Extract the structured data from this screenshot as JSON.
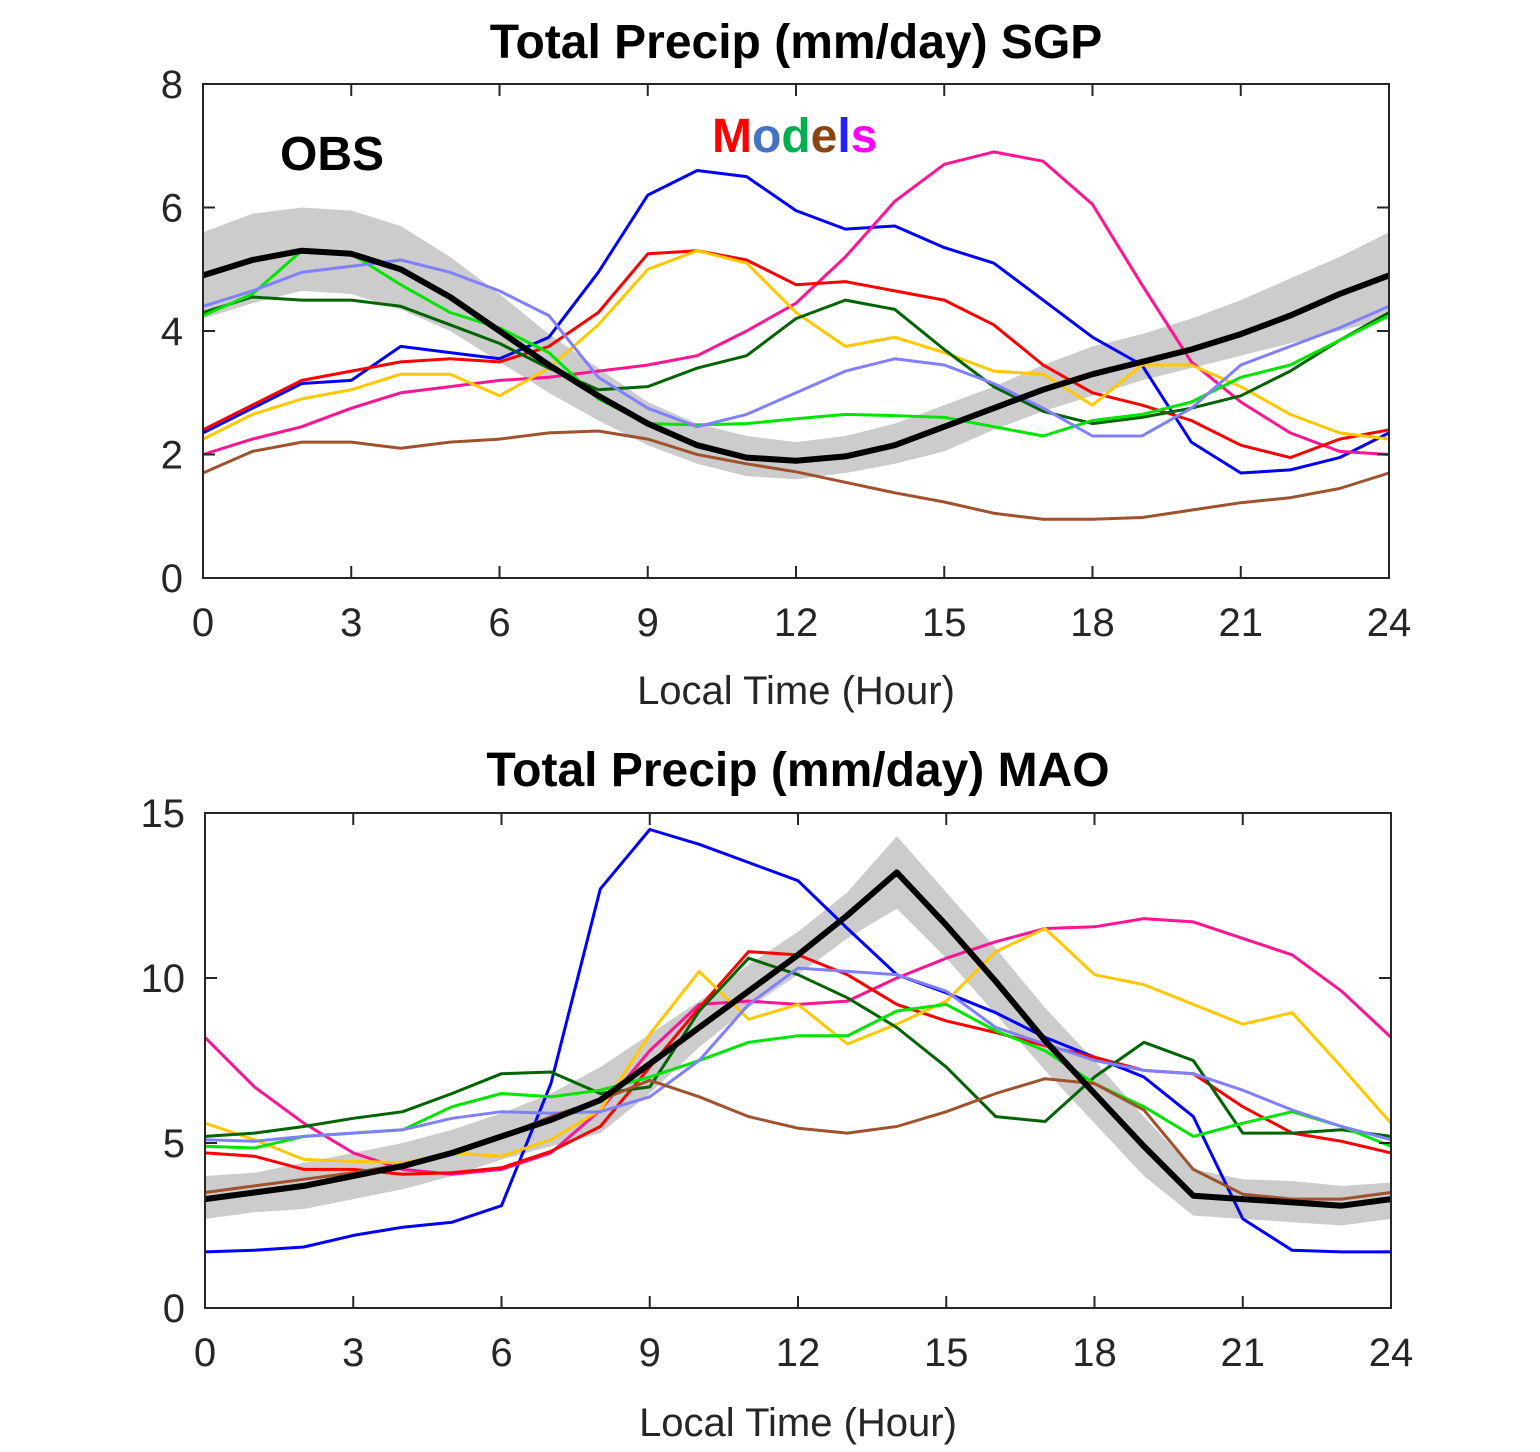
{
  "colors": {
    "obs": "#000000",
    "band": "#cccccc",
    "models": [
      "#0000ff",
      "#ff1493",
      "#ff0000",
      "#ffc800",
      "#006400",
      "#00e600",
      "#8080ff",
      "#a0522d"
    ]
  },
  "chart_data": [
    {
      "type": "line",
      "title": "Total Precip (mm/day) SGP",
      "xlabel": "Local Time (Hour)",
      "ylabel": "",
      "xlim": [
        0,
        24
      ],
      "ylim": [
        0,
        8
      ],
      "xticks": [
        0,
        3,
        6,
        9,
        12,
        15,
        18,
        21,
        24
      ],
      "yticks": [
        0,
        2,
        4,
        6,
        8
      ],
      "xtick_labels": [
        "0",
        "3",
        "6",
        "9",
        "12",
        "15",
        "18",
        "21",
        "24"
      ],
      "ytick_labels": [
        "0",
        "2",
        "4",
        "6",
        "8"
      ],
      "annotations": {
        "obs_label": "OBS",
        "models_letters": [
          "M",
          "o",
          "d",
          "e",
          "l",
          "s"
        ],
        "models_colors": [
          "#ff0000",
          "#4472c4",
          "#00b050",
          "#8b4513",
          "#1f1fff",
          "#ff00ff"
        ]
      },
      "x": [
        0,
        1,
        2,
        3,
        4,
        5,
        6,
        7,
        8,
        9,
        10,
        11,
        12,
        13,
        14,
        15,
        16,
        17,
        18,
        19,
        20,
        21,
        22,
        23,
        24
      ],
      "obs_band": {
        "upper": [
          5.6,
          5.9,
          6.0,
          5.95,
          5.7,
          5.2,
          4.6,
          3.95,
          3.4,
          2.85,
          2.5,
          2.3,
          2.2,
          2.3,
          2.5,
          2.8,
          3.1,
          3.45,
          3.75,
          3.95,
          4.2,
          4.5,
          4.85,
          5.2,
          5.6
        ],
        "lower": [
          4.2,
          4.45,
          4.65,
          4.6,
          4.35,
          4.0,
          3.5,
          3.0,
          2.55,
          2.15,
          1.85,
          1.65,
          1.6,
          1.7,
          1.85,
          2.05,
          2.4,
          2.7,
          2.95,
          3.2,
          3.4,
          3.6,
          3.8,
          4.0,
          4.2
        ]
      },
      "series": [
        {
          "name": "OBS",
          "color": "#000000",
          "values": [
            4.9,
            5.15,
            5.3,
            5.25,
            5.0,
            4.55,
            4.0,
            3.45,
            2.95,
            2.5,
            2.15,
            1.95,
            1.9,
            1.97,
            2.15,
            2.45,
            2.75,
            3.05,
            3.3,
            3.5,
            3.7,
            3.95,
            4.25,
            4.6,
            4.9
          ]
        },
        {
          "name": "model-blue",
          "color": "#0000ff",
          "values": [
            2.35,
            2.75,
            3.15,
            3.2,
            3.75,
            3.65,
            3.55,
            3.9,
            4.95,
            6.2,
            6.6,
            6.5,
            5.95,
            5.65,
            5.7,
            5.35,
            5.1,
            4.5,
            3.9,
            3.45,
            2.2,
            1.7,
            1.75,
            1.95,
            2.35
          ]
        },
        {
          "name": "model-magenta",
          "color": "#ff1493",
          "values": [
            2.0,
            2.25,
            2.45,
            2.75,
            3.0,
            3.1,
            3.2,
            3.25,
            3.35,
            3.45,
            3.6,
            4.0,
            4.45,
            5.2,
            6.1,
            6.7,
            6.9,
            6.75,
            6.05,
            4.75,
            3.5,
            2.85,
            2.35,
            2.05,
            2.0
          ]
        },
        {
          "name": "model-red",
          "color": "#ff0000",
          "values": [
            2.4,
            2.8,
            3.2,
            3.35,
            3.5,
            3.55,
            3.5,
            3.75,
            4.3,
            5.25,
            5.3,
            5.15,
            4.75,
            4.8,
            4.65,
            4.5,
            4.1,
            3.45,
            3.0,
            2.8,
            2.55,
            2.15,
            1.95,
            2.25,
            2.4
          ]
        },
        {
          "name": "model-yellow",
          "color": "#ffc800",
          "values": [
            2.25,
            2.65,
            2.9,
            3.05,
            3.3,
            3.3,
            2.95,
            3.4,
            4.1,
            5.0,
            5.3,
            5.1,
            4.3,
            3.75,
            3.9,
            3.65,
            3.35,
            3.3,
            2.8,
            3.45,
            3.45,
            3.1,
            2.65,
            2.35,
            2.25
          ]
        },
        {
          "name": "model-darkgreen",
          "color": "#006400",
          "values": [
            4.3,
            4.55,
            4.5,
            4.5,
            4.4,
            4.1,
            3.8,
            3.4,
            3.05,
            3.1,
            3.4,
            3.6,
            4.2,
            4.5,
            4.35,
            3.7,
            3.1,
            2.7,
            2.5,
            2.6,
            2.75,
            2.95,
            3.35,
            3.85,
            4.3
          ]
        },
        {
          "name": "model-green",
          "color": "#00e600",
          "values": [
            4.25,
            4.6,
            5.3,
            5.25,
            4.75,
            4.3,
            4.05,
            3.65,
            2.9,
            2.5,
            2.48,
            2.5,
            2.58,
            2.65,
            2.63,
            2.6,
            2.45,
            2.3,
            2.55,
            2.65,
            2.85,
            3.25,
            3.45,
            3.85,
            4.25
          ]
        },
        {
          "name": "model-lightblue",
          "color": "#8080ff",
          "values": [
            4.4,
            4.65,
            4.95,
            5.05,
            5.15,
            4.95,
            4.65,
            4.25,
            3.25,
            2.75,
            2.45,
            2.65,
            3.0,
            3.35,
            3.55,
            3.45,
            3.15,
            2.75,
            2.3,
            2.3,
            2.75,
            3.45,
            3.75,
            4.05,
            4.4
          ]
        },
        {
          "name": "model-brown",
          "color": "#a0522d",
          "values": [
            1.7,
            2.05,
            2.2,
            2.2,
            2.1,
            2.2,
            2.25,
            2.35,
            2.38,
            2.25,
            2.0,
            1.85,
            1.72,
            1.55,
            1.38,
            1.23,
            1.05,
            0.95,
            0.95,
            0.98,
            1.1,
            1.22,
            1.3,
            1.45,
            1.7
          ]
        }
      ]
    },
    {
      "type": "line",
      "title": "Total Precip (mm/day) MAO",
      "xlabel": "Local Time (Hour)",
      "ylabel": "",
      "xlim": [
        0,
        24
      ],
      "ylim": [
        0,
        15
      ],
      "xticks": [
        0,
        3,
        6,
        9,
        12,
        15,
        18,
        21,
        24
      ],
      "yticks": [
        0,
        5,
        10,
        15
      ],
      "xtick_labels": [
        "0",
        "3",
        "6",
        "9",
        "12",
        "15",
        "18",
        "21",
        "24"
      ],
      "ytick_labels": [
        "0",
        "5",
        "10",
        "15"
      ],
      "x": [
        0,
        1,
        2,
        3,
        4,
        5,
        6,
        7,
        8,
        9,
        10,
        11,
        12,
        13,
        14,
        15,
        16,
        17,
        18,
        19,
        20,
        21,
        22,
        23,
        24
      ],
      "obs_band": {
        "upper": [
          4.0,
          4.1,
          4.4,
          4.7,
          5.0,
          5.4,
          5.9,
          6.5,
          7.3,
          8.3,
          9.3,
          10.4,
          11.4,
          12.6,
          14.3,
          12.6,
          10.9,
          9.1,
          7.5,
          5.8,
          4.2,
          3.9,
          3.85,
          3.7,
          3.8
        ],
        "lower": [
          2.7,
          2.9,
          3.0,
          3.3,
          3.6,
          4.0,
          4.5,
          4.9,
          5.3,
          6.5,
          7.9,
          9.1,
          10.1,
          11.2,
          12.1,
          10.6,
          8.9,
          7.2,
          5.6,
          4.0,
          2.8,
          2.7,
          2.6,
          2.5,
          2.7
        ]
      },
      "series": [
        {
          "name": "OBS",
          "color": "#000000",
          "values": [
            3.3,
            3.5,
            3.7,
            4.0,
            4.3,
            4.7,
            5.2,
            5.7,
            6.3,
            7.4,
            8.5,
            9.6,
            10.7,
            11.9,
            13.2,
            11.6,
            9.9,
            8.1,
            6.5,
            4.9,
            3.4,
            3.3,
            3.2,
            3.1,
            3.3
          ]
        },
        {
          "name": "model-blue",
          "color": "#0000ff",
          "values": [
            1.7,
            1.75,
            1.85,
            2.2,
            2.45,
            2.6,
            3.1,
            6.8,
            12.7,
            14.5,
            14.05,
            13.5,
            12.95,
            11.5,
            10.1,
            9.55,
            8.95,
            8.2,
            7.6,
            7.0,
            5.8,
            2.7,
            1.75,
            1.7,
            1.7
          ]
        },
        {
          "name": "model-magenta",
          "color": "#ff1493",
          "values": [
            8.2,
            6.7,
            5.6,
            4.7,
            4.2,
            4.05,
            4.2,
            4.7,
            6.0,
            7.8,
            9.2,
            9.3,
            9.2,
            9.3,
            10.0,
            10.6,
            11.1,
            11.5,
            11.55,
            11.8,
            11.7,
            11.2,
            10.7,
            9.6,
            8.2
          ]
        },
        {
          "name": "model-red",
          "color": "#ff0000",
          "values": [
            4.7,
            4.6,
            4.2,
            4.2,
            4.05,
            4.1,
            4.25,
            4.75,
            5.5,
            7.3,
            9.1,
            10.8,
            10.7,
            10.1,
            9.2,
            8.7,
            8.35,
            7.95,
            7.6,
            7.2,
            7.1,
            6.1,
            5.3,
            5.05,
            4.7
          ]
        },
        {
          "name": "model-yellow",
          "color": "#ffc800",
          "values": [
            5.6,
            5.1,
            4.5,
            4.45,
            4.4,
            4.7,
            4.6,
            5.1,
            6.0,
            8.3,
            10.2,
            8.75,
            9.2,
            8.0,
            8.6,
            9.3,
            10.8,
            11.5,
            10.1,
            9.8,
            9.2,
            8.6,
            8.95,
            7.3,
            5.6
          ]
        },
        {
          "name": "model-darkgreen",
          "color": "#006400",
          "values": [
            5.2,
            5.3,
            5.5,
            5.75,
            5.95,
            6.5,
            7.1,
            7.15,
            6.5,
            6.7,
            9.0,
            10.6,
            10.1,
            9.4,
            8.5,
            7.3,
            5.8,
            5.65,
            7.0,
            8.05,
            7.5,
            5.3,
            5.3,
            5.4,
            5.2
          ]
        },
        {
          "name": "model-green",
          "color": "#00e600",
          "values": [
            4.9,
            4.85,
            5.2,
            5.3,
            5.4,
            6.1,
            6.5,
            6.4,
            6.6,
            7.0,
            7.5,
            8.05,
            8.25,
            8.25,
            9.0,
            9.2,
            8.4,
            7.8,
            6.8,
            6.1,
            5.2,
            5.6,
            5.95,
            5.5,
            4.9
          ]
        },
        {
          "name": "model-lightblue",
          "color": "#8080ff",
          "values": [
            5.1,
            5.05,
            5.2,
            5.3,
            5.4,
            5.75,
            5.95,
            5.9,
            5.95,
            6.4,
            7.5,
            9.2,
            10.3,
            10.2,
            10.1,
            9.6,
            8.5,
            8.0,
            7.5,
            7.2,
            7.1,
            6.6,
            6.0,
            5.5,
            5.1
          ]
        },
        {
          "name": "model-brown",
          "color": "#a0522d",
          "values": [
            3.5,
            3.7,
            3.9,
            4.1,
            4.35,
            4.7,
            5.2,
            5.8,
            6.3,
            6.9,
            6.4,
            5.8,
            5.45,
            5.3,
            5.5,
            5.95,
            6.5,
            6.95,
            6.8,
            6.0,
            4.2,
            3.45,
            3.3,
            3.3,
            3.5
          ]
        }
      ]
    }
  ]
}
